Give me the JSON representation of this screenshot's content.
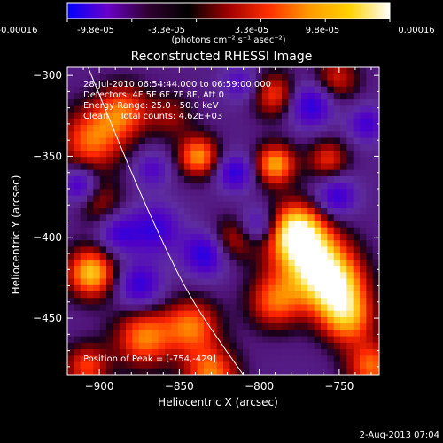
{
  "chart_data": {
    "type": "heatmap",
    "title": "Reconstructed RHESSI Image",
    "xlabel": "Heliocentric X (arcsec)",
    "ylabel": "Heliocentric Y (arcsec)",
    "xlim": [
      -920,
      -725
    ],
    "ylim": [
      -485,
      -295
    ],
    "xticks": [
      -900,
      -850,
      -800,
      -750
    ],
    "yticks": [
      -300,
      -350,
      -400,
      -450
    ],
    "colorbar": {
      "label": "(photons cm⁻² s⁻¹ asec⁻²)",
      "range": [
        -0.00016,
        0.00016
      ],
      "ticks": [
        "-0.00016",
        "-9.8e-05",
        "-3.3e-05",
        "3.3e-05",
        "9.8e-05",
        "0.00016"
      ],
      "colors": [
        "#0000ff",
        "#6a00c8",
        "#300030",
        "#000000",
        "#a00000",
        "#ff3000",
        "#ff9a00",
        "#ffd200",
        "#ffffff"
      ]
    },
    "annotations": [
      "28-Jul-2010 06:54:44.000 to 06:59:00.000",
      "Detectors: 4F 5F 6F 7F 8F, Att 0",
      "Energy Range: 25.0 - 50.0 keV",
      "Clean    Total counts: 4.62E+03"
    ],
    "peak_label": "Position of Peak = [-754,-429]",
    "peak": [
      -754,
      -429
    ],
    "limb_points": [
      [
        -907,
        -295
      ],
      [
        -880,
        -360
      ],
      [
        -862,
        -400
      ],
      [
        -842,
        -440
      ],
      [
        -810,
        -485
      ]
    ],
    "blobs": [
      {
        "x": -754,
        "y": -429,
        "v": 1.0,
        "s": 14
      },
      {
        "x": -770,
        "y": -410,
        "v": 0.9,
        "s": 16
      },
      {
        "x": -778,
        "y": -395,
        "v": 0.8,
        "s": 12
      },
      {
        "x": -745,
        "y": -450,
        "v": 0.75,
        "s": 12
      },
      {
        "x": -790,
        "y": -440,
        "v": 0.65,
        "s": 12
      },
      {
        "x": -905,
        "y": -422,
        "v": 0.95,
        "s": 11
      },
      {
        "x": -905,
        "y": -340,
        "v": 0.7,
        "s": 14
      },
      {
        "x": -885,
        "y": -322,
        "v": 0.65,
        "s": 12
      },
      {
        "x": -872,
        "y": -462,
        "v": 0.75,
        "s": 13
      },
      {
        "x": -908,
        "y": -480,
        "v": 0.6,
        "s": 10
      },
      {
        "x": -842,
        "y": -455,
        "v": 0.7,
        "s": 12
      },
      {
        "x": -830,
        "y": -485,
        "v": 0.75,
        "s": 12
      },
      {
        "x": -838,
        "y": -350,
        "v": 0.8,
        "s": 9
      },
      {
        "x": -790,
        "y": -355,
        "v": 0.85,
        "s": 9
      },
      {
        "x": -790,
        "y": -312,
        "v": 0.6,
        "s": 10
      },
      {
        "x": -818,
        "y": -402,
        "v": 0.5,
        "s": 10
      },
      {
        "x": -757,
        "y": -352,
        "v": 0.55,
        "s": 9
      },
      {
        "x": -730,
        "y": -480,
        "v": 0.7,
        "s": 11
      },
      {
        "x": -752,
        "y": -302,
        "v": 0.5,
        "s": 10
      },
      {
        "x": -855,
        "y": -325,
        "v": 0.35,
        "s": 10
      },
      {
        "x": -900,
        "y": -378,
        "v": 0.4,
        "s": 10
      },
      {
        "x": -865,
        "y": -395,
        "v": -0.55,
        "s": 11
      },
      {
        "x": -875,
        "y": -430,
        "v": -0.6,
        "s": 10
      },
      {
        "x": -833,
        "y": -410,
        "v": -0.7,
        "s": 10
      },
      {
        "x": -888,
        "y": -398,
        "v": -0.5,
        "s": 9
      },
      {
        "x": -912,
        "y": -368,
        "v": -0.6,
        "s": 8
      },
      {
        "x": -815,
        "y": -360,
        "v": -0.6,
        "s": 8
      },
      {
        "x": -800,
        "y": -392,
        "v": -0.5,
        "s": 8
      },
      {
        "x": -768,
        "y": -318,
        "v": -0.65,
        "s": 10
      },
      {
        "x": -752,
        "y": -375,
        "v": -0.6,
        "s": 9
      },
      {
        "x": -733,
        "y": -330,
        "v": -0.5,
        "s": 8
      },
      {
        "x": -867,
        "y": -358,
        "v": -0.4,
        "s": 8
      },
      {
        "x": -812,
        "y": -305,
        "v": -0.4,
        "s": 8
      }
    ]
  },
  "footer": {
    "timestamp": "2-Aug-2013 07:04"
  }
}
